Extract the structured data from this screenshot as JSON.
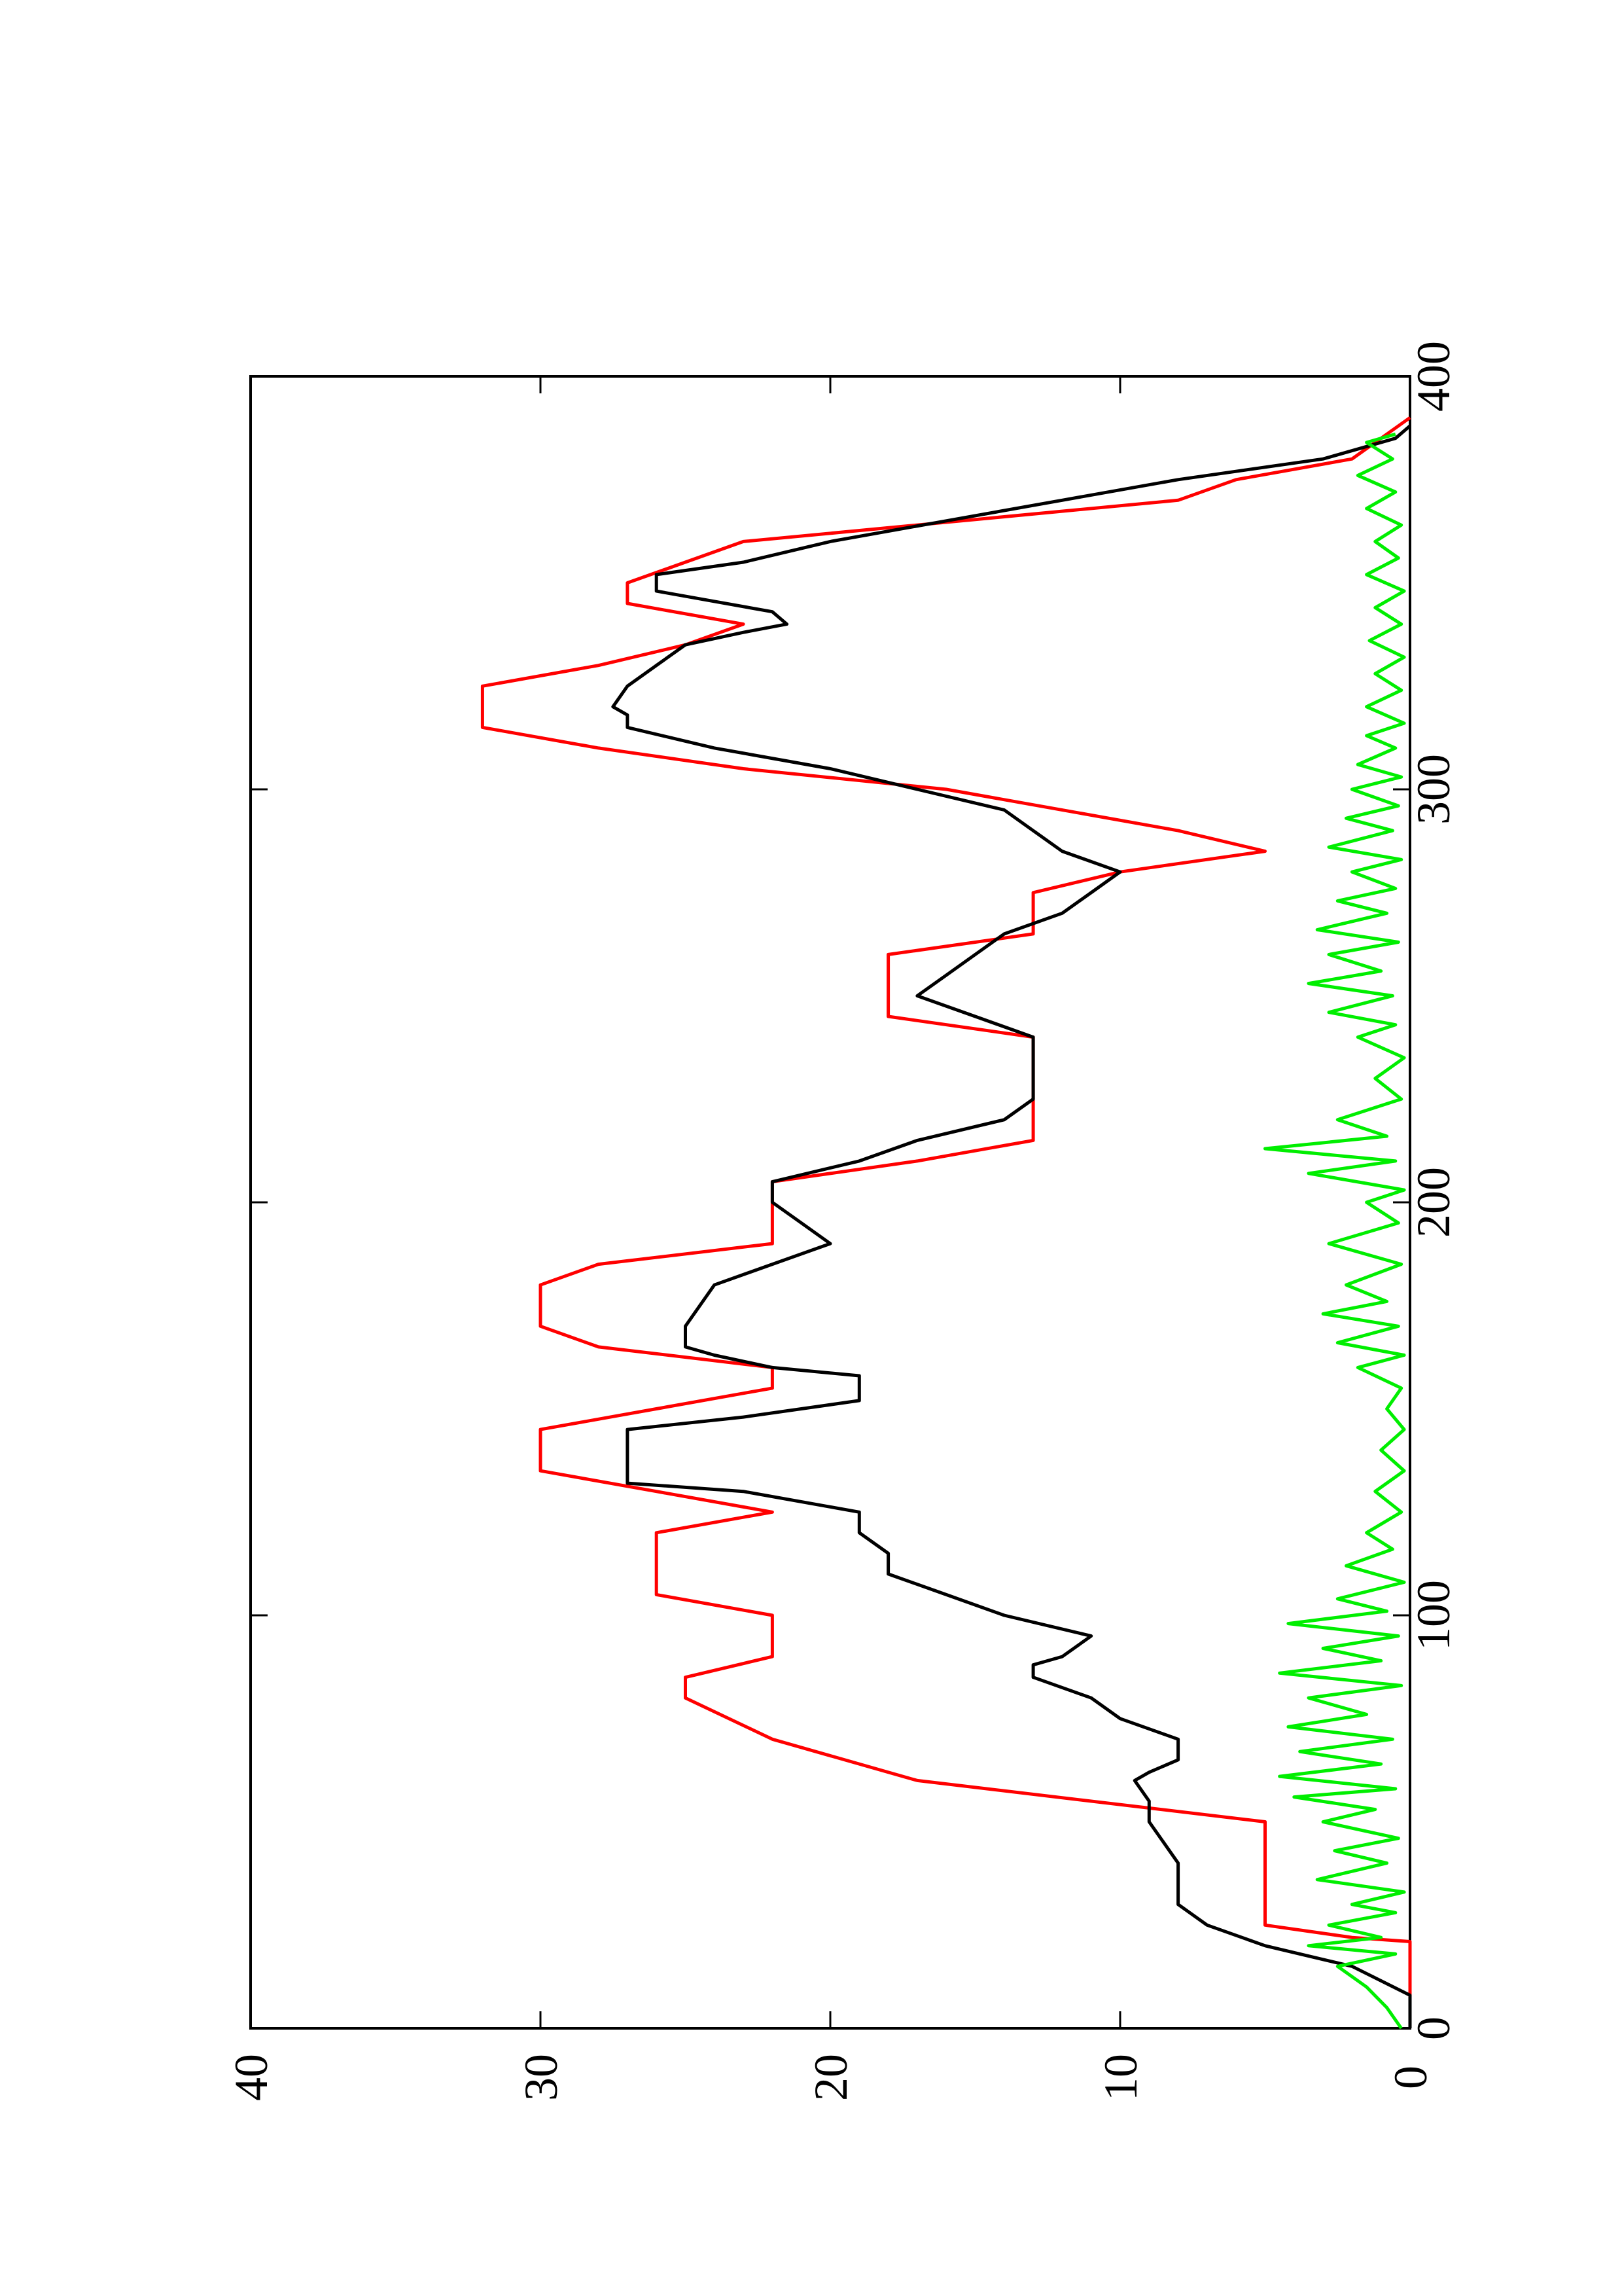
{
  "chart_data": {
    "type": "line",
    "orientation": "rotated-90-ccw",
    "title": "",
    "xlabel": "",
    "ylabel": "",
    "xlim": [
      0,
      400
    ],
    "ylim": [
      0,
      40
    ],
    "x_ticks": [
      0,
      100,
      200,
      300,
      400
    ],
    "y_ticks": [
      0,
      10,
      20,
      30,
      40
    ],
    "x_tick_labels": [
      "0",
      "100",
      "200",
      "300",
      "400"
    ],
    "y_tick_labels": [
      "0",
      "10",
      "20",
      "30",
      "40"
    ],
    "grid": false,
    "legend": "none",
    "series": [
      {
        "color": "#ff0000",
        "points": [
          [
            0,
            0
          ],
          [
            21,
            0
          ],
          [
            22,
            2
          ],
          [
            25,
            5
          ],
          [
            50,
            5
          ],
          [
            60,
            17
          ],
          [
            70,
            22
          ],
          [
            80,
            25
          ],
          [
            85,
            25
          ],
          [
            90,
            22
          ],
          [
            100,
            22
          ],
          [
            105,
            26
          ],
          [
            120,
            26
          ],
          [
            125,
            22
          ],
          [
            130,
            26
          ],
          [
            135,
            30
          ],
          [
            145,
            30
          ],
          [
            150,
            26
          ],
          [
            155,
            22
          ],
          [
            160,
            22
          ],
          [
            165,
            28
          ],
          [
            170,
            30
          ],
          [
            180,
            30
          ],
          [
            185,
            28
          ],
          [
            190,
            22
          ],
          [
            205,
            22
          ],
          [
            210,
            17
          ],
          [
            215,
            13
          ],
          [
            240,
            13
          ],
          [
            245,
            18
          ],
          [
            260,
            18
          ],
          [
            265,
            13
          ],
          [
            275,
            13
          ],
          [
            280,
            10
          ],
          [
            285,
            5
          ],
          [
            290,
            8
          ],
          [
            300,
            16
          ],
          [
            305,
            23
          ],
          [
            310,
            28
          ],
          [
            315,
            32
          ],
          [
            325,
            32
          ],
          [
            330,
            28
          ],
          [
            335,
            25
          ],
          [
            340,
            23
          ],
          [
            345,
            27
          ],
          [
            350,
            27
          ],
          [
            360,
            23
          ],
          [
            370,
            8
          ],
          [
            375,
            6
          ],
          [
            380,
            2
          ],
          [
            390,
            0
          ]
        ]
      },
      {
        "color": "#000000",
        "points": [
          [
            0,
            0
          ],
          [
            8,
            0
          ],
          [
            15,
            2
          ],
          [
            20,
            5
          ],
          [
            25,
            7
          ],
          [
            30,
            8
          ],
          [
            40,
            8
          ],
          [
            45,
            8.5
          ],
          [
            50,
            9
          ],
          [
            55,
            9
          ],
          [
            60,
            9.5
          ],
          [
            62,
            9
          ],
          [
            65,
            8
          ],
          [
            70,
            8
          ],
          [
            75,
            10
          ],
          [
            80,
            11
          ],
          [
            85,
            13
          ],
          [
            88,
            13
          ],
          [
            90,
            12
          ],
          [
            95,
            11
          ],
          [
            100,
            14
          ],
          [
            105,
            16
          ],
          [
            110,
            18
          ],
          [
            115,
            18
          ],
          [
            120,
            19
          ],
          [
            125,
            19
          ],
          [
            130,
            23
          ],
          [
            132,
            27
          ],
          [
            140,
            27
          ],
          [
            145,
            27
          ],
          [
            148,
            23
          ],
          [
            152,
            19
          ],
          [
            158,
            19
          ],
          [
            160,
            22
          ],
          [
            163,
            24
          ],
          [
            165,
            25
          ],
          [
            170,
            25
          ],
          [
            175,
            24.5
          ],
          [
            180,
            24
          ],
          [
            185,
            22
          ],
          [
            190,
            20
          ],
          [
            195,
            21
          ],
          [
            200,
            22
          ],
          [
            205,
            22
          ],
          [
            210,
            19
          ],
          [
            215,
            17
          ],
          [
            220,
            14
          ],
          [
            225,
            13
          ],
          [
            230,
            13
          ],
          [
            235,
            13
          ],
          [
            240,
            13
          ],
          [
            245,
            15
          ],
          [
            250,
            17
          ],
          [
            255,
            16
          ],
          [
            260,
            15
          ],
          [
            265,
            14
          ],
          [
            270,
            12
          ],
          [
            275,
            11
          ],
          [
            280,
            10
          ],
          [
            285,
            12
          ],
          [
            290,
            13
          ],
          [
            295,
            14
          ],
          [
            300,
            17
          ],
          [
            305,
            20
          ],
          [
            310,
            24
          ],
          [
            315,
            27
          ],
          [
            318,
            27
          ],
          [
            320,
            27.5
          ],
          [
            325,
            27
          ],
          [
            330,
            26
          ],
          [
            335,
            25
          ],
          [
            338,
            23
          ],
          [
            340,
            21.5
          ],
          [
            343,
            22
          ],
          [
            348,
            26
          ],
          [
            352,
            26
          ],
          [
            355,
            23
          ],
          [
            360,
            20
          ],
          [
            365,
            16
          ],
          [
            370,
            12
          ],
          [
            375,
            8
          ],
          [
            380,
            3
          ],
          [
            385,
            0.5
          ],
          [
            388,
            0
          ]
        ]
      },
      {
        "color": "#00ee00",
        "points": [
          [
            0,
            0.3
          ],
          [
            5,
            0.8
          ],
          [
            10,
            1.5
          ],
          [
            15,
            2.5
          ],
          [
            18,
            0.5
          ],
          [
            20,
            3.5
          ],
          [
            22,
            1
          ],
          [
            25,
            2.8
          ],
          [
            28,
            0.5
          ],
          [
            30,
            2
          ],
          [
            33,
            0.2
          ],
          [
            36,
            3.2
          ],
          [
            40,
            0.8
          ],
          [
            43,
            2.6
          ],
          [
            46,
            0.4
          ],
          [
            50,
            3
          ],
          [
            53,
            1.2
          ],
          [
            56,
            4
          ],
          [
            58,
            0.5
          ],
          [
            61,
            4.5
          ],
          [
            64,
            1
          ],
          [
            67,
            3.8
          ],
          [
            70,
            0.6
          ],
          [
            73,
            4.2
          ],
          [
            76,
            1.5
          ],
          [
            80,
            3.5
          ],
          [
            83,
            0.3
          ],
          [
            86,
            4.5
          ],
          [
            89,
            1
          ],
          [
            92,
            3
          ],
          [
            95,
            0.4
          ],
          [
            98,
            4.2
          ],
          [
            101,
            0.8
          ],
          [
            104,
            2.5
          ],
          [
            108,
            0.2
          ],
          [
            112,
            2.2
          ],
          [
            116,
            0.6
          ],
          [
            120,
            1.5
          ],
          [
            125,
            0.3
          ],
          [
            130,
            1.2
          ],
          [
            135,
            0.2
          ],
          [
            140,
            1
          ],
          [
            145,
            0.2
          ],
          [
            150,
            0.8
          ],
          [
            155,
            0.3
          ],
          [
            160,
            1.8
          ],
          [
            163,
            0.2
          ],
          [
            166,
            2.5
          ],
          [
            170,
            0.4
          ],
          [
            173,
            3
          ],
          [
            176,
            0.8
          ],
          [
            180,
            2.2
          ],
          [
            185,
            0.3
          ],
          [
            190,
            2.8
          ],
          [
            195,
            0.4
          ],
          [
            200,
            1.5
          ],
          [
            203,
            0.2
          ],
          [
            207,
            3.5
          ],
          [
            210,
            0.5
          ],
          [
            213,
            5
          ],
          [
            216,
            0.8
          ],
          [
            220,
            2.5
          ],
          [
            225,
            0.3
          ],
          [
            230,
            1.2
          ],
          [
            235,
            0.2
          ],
          [
            240,
            1.8
          ],
          [
            243,
            0.5
          ],
          [
            246,
            2.8
          ],
          [
            250,
            0.6
          ],
          [
            253,
            3.5
          ],
          [
            256,
            1
          ],
          [
            260,
            2.8
          ],
          [
            263,
            0.4
          ],
          [
            266,
            3.2
          ],
          [
            270,
            0.8
          ],
          [
            273,
            2.5
          ],
          [
            276,
            0.5
          ],
          [
            280,
            2
          ],
          [
            283,
            0.3
          ],
          [
            286,
            2.8
          ],
          [
            290,
            0.6
          ],
          [
            293,
            2.2
          ],
          [
            296,
            0.4
          ],
          [
            300,
            2
          ],
          [
            303,
            0.3
          ],
          [
            306,
            1.8
          ],
          [
            310,
            0.5
          ],
          [
            313,
            1.5
          ],
          [
            316,
            0.2
          ],
          [
            320,
            1.5
          ],
          [
            324,
            0.3
          ],
          [
            328,
            1.2
          ],
          [
            332,
            0.2
          ],
          [
            336,
            1.4
          ],
          [
            340,
            0.3
          ],
          [
            344,
            1.2
          ],
          [
            348,
            0.2
          ],
          [
            352,
            1.5
          ],
          [
            356,
            0.4
          ],
          [
            360,
            1.2
          ],
          [
            364,
            0.3
          ],
          [
            368,
            1.5
          ],
          [
            372,
            0.5
          ],
          [
            376,
            1.8
          ],
          [
            380,
            0.6
          ],
          [
            384,
            1.5
          ],
          [
            386,
            0.5
          ]
        ]
      }
    ]
  }
}
